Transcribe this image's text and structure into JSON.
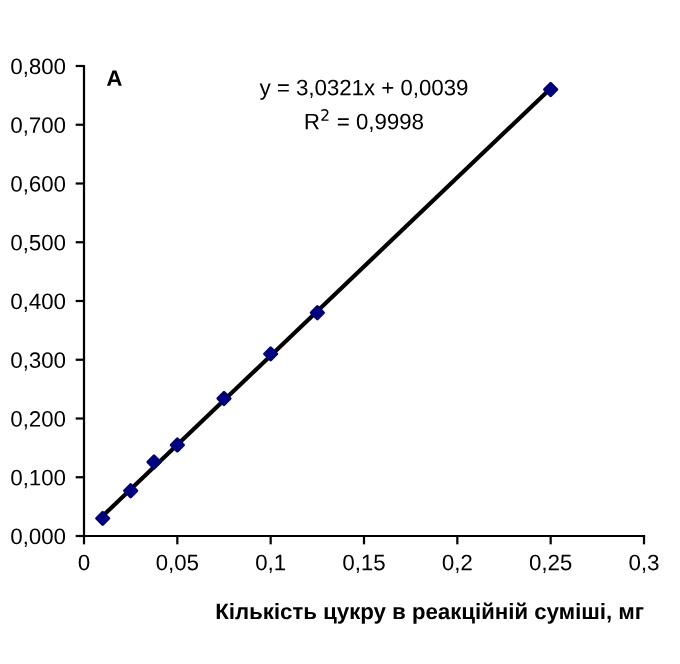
{
  "chart_data": {
    "type": "scatter",
    "xlabel": "Кількість цукру в реакційній суміші, мг",
    "annotations": [
      "A",
      "y = 3,0321x + 0,0039",
      "R$^{2}$ = 0,9998"
    ],
    "series": [
      {
        "color": "#000080",
        "marker": "diamond",
        "x": [
          0.01,
          0.025,
          0.0375,
          0.05,
          0.075,
          0.1,
          0.125,
          0.25
        ],
        "values": [
          0.03,
          0.077,
          0.126,
          0.155,
          0.234,
          0.31,
          0.38,
          0.76
        ]
      },
      {
        "type": "line",
        "color": "#000000",
        "marker": "none",
        "x": [
          0.01,
          0.25
        ],
        "values": [
          0.034,
          0.762
        ]
      }
    ],
    "xlim": [
      0,
      0.3
    ],
    "ylim": [
      0,
      0.8
    ],
    "xticks": [
      0,
      {
        "value": 0.05,
        "label": "0,05"
      },
      {
        "value": 0.1,
        "label": "0,1"
      },
      {
        "value": 0.15,
        "label": "0,15"
      },
      {
        "value": 0.2,
        "label": "0,2"
      },
      {
        "value": 0.25,
        "label": "0,25"
      },
      {
        "value": 0.3,
        "label": "0,3"
      }
    ],
    "yticks": [
      {
        "value": 0,
        "label": "0,000"
      },
      {
        "value": 0.1,
        "label": "0,100"
      },
      {
        "value": 0.2,
        "label": "0,200"
      },
      {
        "value": 0.3,
        "label": "0,300"
      },
      {
        "value": 0.4,
        "label": "0,400"
      },
      {
        "value": 0.5,
        "label": "0,500"
      },
      {
        "value": 0.6,
        "label": "0,600"
      },
      {
        "value": 0.7,
        "label": "0,700"
      },
      {
        "value": 0.8,
        "label": "0,800"
      }
    ],
    "grid": false,
    "legend": false
  }
}
